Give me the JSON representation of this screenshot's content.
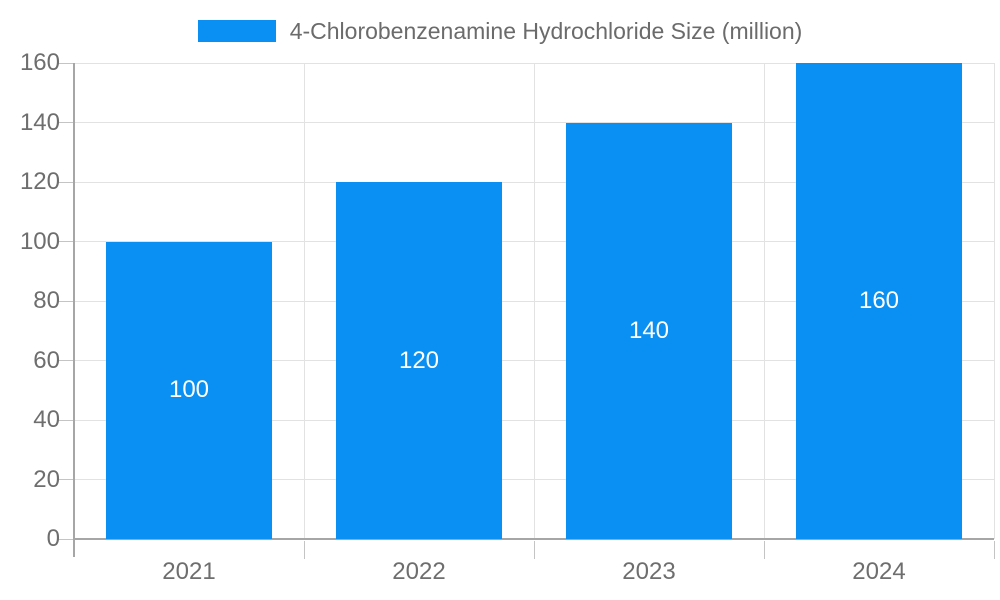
{
  "chart_data": {
    "type": "bar",
    "title": "",
    "legend": [
      {
        "label": "4-Chlorobenzenamine Hydrochloride Size (million)",
        "color": "#0A90F2"
      }
    ],
    "legend_position": "top",
    "categories": [
      "2021",
      "2022",
      "2023",
      "2024"
    ],
    "series": [
      {
        "name": "4-Chlorobenzenamine Hydrochloride Size (million)",
        "values": [
          100,
          120,
          140,
          160
        ]
      }
    ],
    "bar_labels": [
      "100",
      "120",
      "140",
      "160"
    ],
    "xlabel": "",
    "ylabel": "",
    "ylim": [
      0,
      160
    ],
    "yticks": [
      0,
      20,
      40,
      60,
      80,
      100,
      120,
      140,
      160
    ],
    "grid": true,
    "colors": {
      "bar": "#0A90F2",
      "axis": "#a6a6a6",
      "gridline": "#e2e2e2",
      "tick_mark": "#c4c4c4",
      "axis_label_text": "#6e6e6e",
      "bar_label_text": "#ffffff",
      "legend_text": "#6b6b6b",
      "background": "#ffffff"
    }
  }
}
